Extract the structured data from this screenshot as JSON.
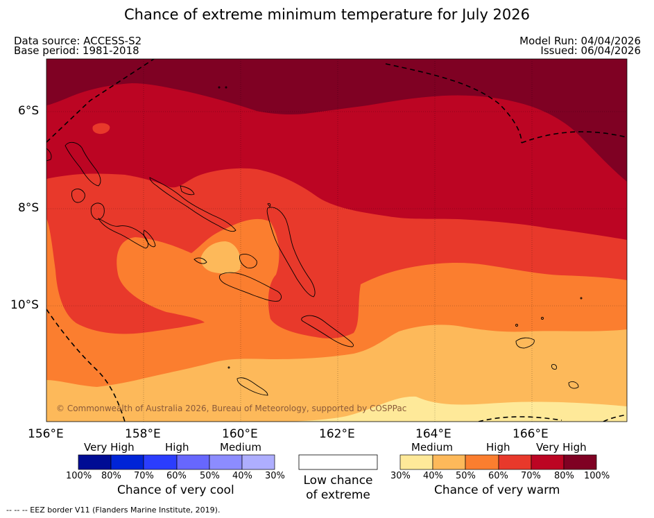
{
  "header": {
    "title": "Chance of extreme minimum temperature for July 2026",
    "data_source": "Data source: ACCESS-S2",
    "base_period": "Base period: 1981-2018",
    "model_run": "Model Run: 04/04/2026",
    "issued": "Issued: 06/04/2026"
  },
  "map": {
    "lon_labels": [
      "156°E",
      "158°E",
      "160°E",
      "162°E",
      "164°E",
      "166°E"
    ],
    "lat_labels": [
      "6°S",
      "8°S",
      "10°S"
    ],
    "copyright": "© Commonwealth of Australia 2026, Bureau of Meteorology, supported by COSPPac",
    "colors": {
      "c30_40": "#fee999",
      "c40_50": "#fdb95a",
      "c50_60": "#fb7e2f",
      "c60_70": "#e8392b",
      "c70_80": "#bc0523",
      "c80_100": "#7f0123"
    }
  },
  "legend": {
    "cool": {
      "headers": [
        "Very High",
        "High",
        "Medium"
      ],
      "ticks": [
        "100%",
        "80%",
        "70%",
        "60%",
        "50%",
        "40%",
        "30%"
      ],
      "caption": "Chance of very cool",
      "colors": [
        "#000c94",
        "#0024d7",
        "#2b3dfd",
        "#6767fd",
        "#8c8cfe",
        "#aeaefe"
      ]
    },
    "neutral": {
      "caption_line1": "Low chance",
      "caption_line2": "of extreme"
    },
    "warm": {
      "headers": [
        "Medium",
        "High",
        "Very High"
      ],
      "ticks": [
        "30%",
        "40%",
        "50%",
        "60%",
        "70%",
        "80%",
        "100%"
      ],
      "caption": "Chance of very warm",
      "colors": [
        "#fee999",
        "#fdb95a",
        "#fb7e2f",
        "#e8392b",
        "#bc0523",
        "#7f0123"
      ]
    }
  },
  "footer": {
    "eez_note": "--  --  -- EEZ border V11 (Flanders Marine Institute, 2019)."
  }
}
